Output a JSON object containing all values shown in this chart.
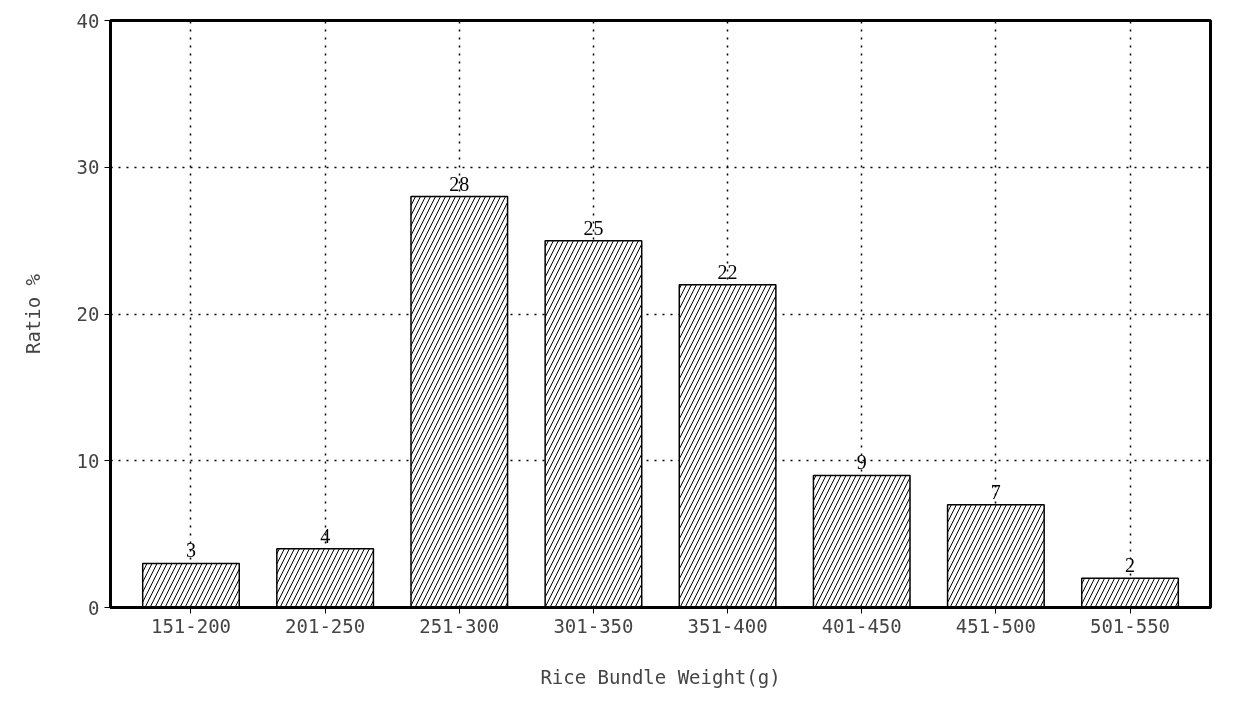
{
  "chart_data": {
    "type": "bar",
    "xlabel": "Rice Bundle Weight(g)",
    "ylabel": "Ratio %",
    "categories": [
      "151-200",
      "201-250",
      "251-300",
      "301-350",
      "351-400",
      "401-450",
      "451-500",
      "501-550"
    ],
    "values": [
      3,
      4,
      28,
      25,
      22,
      9,
      7,
      2
    ],
    "color": "#000000",
    "ylim": [
      0,
      40
    ],
    "yticks": [
      0,
      10,
      20,
      30,
      40
    ],
    "grid": true,
    "data_labels": true
  }
}
